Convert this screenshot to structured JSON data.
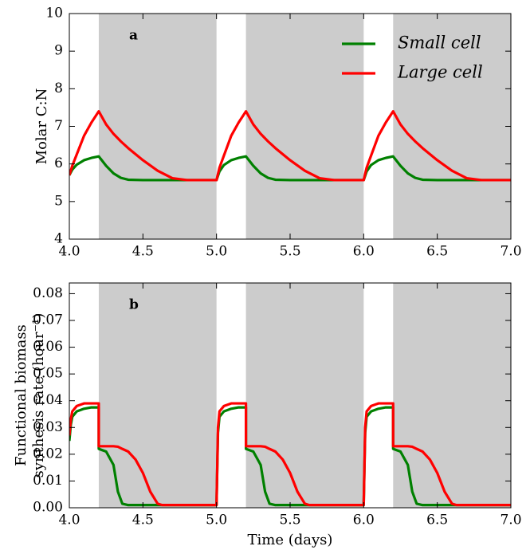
{
  "chart_data": [
    {
      "type": "line",
      "panel_label": "a",
      "ylabel": [
        "Molar C:N"
      ],
      "shaded_intervals": [
        [
          4.2,
          5.0
        ],
        [
          5.2,
          6.0
        ],
        [
          6.2,
          7.0
        ]
      ],
      "shade_color": "#cccccc",
      "xlim": [
        4.0,
        7.0
      ],
      "xticks": [
        {
          "value": 4.0,
          "label": "4.0"
        },
        {
          "value": 4.5,
          "label": "4.5"
        },
        {
          "value": 5.0,
          "label": "5.0"
        },
        {
          "value": 5.5,
          "label": "5.5"
        },
        {
          "value": 6.0,
          "label": "6.0"
        },
        {
          "value": 6.5,
          "label": "6.5"
        },
        {
          "value": 7.0,
          "label": "7.0"
        }
      ],
      "ylim": [
        4,
        10
      ],
      "yticks": [
        4,
        5,
        6,
        7,
        8,
        9,
        10
      ],
      "legend": "upper right",
      "x": [
        4.0,
        4.02,
        4.05,
        4.1,
        4.15,
        4.2,
        4.25,
        4.3,
        4.35,
        4.4,
        4.5,
        4.6,
        4.7,
        4.8,
        4.9,
        5.0,
        5.02,
        5.05,
        5.1,
        5.15,
        5.2,
        5.25,
        5.3,
        5.35,
        5.4,
        5.5,
        5.6,
        5.7,
        5.8,
        5.9,
        6.0,
        6.02,
        6.05,
        6.1,
        6.15,
        6.2,
        6.25,
        6.3,
        6.35,
        6.4,
        6.5,
        6.6,
        6.7,
        6.8,
        6.9,
        7.0
      ],
      "series": [
        {
          "name": "Small cell",
          "color": "#008000",
          "values": [
            5.7,
            5.85,
            5.98,
            6.1,
            6.16,
            6.2,
            5.95,
            5.75,
            5.63,
            5.58,
            5.57,
            5.57,
            5.57,
            5.57,
            5.57,
            5.57,
            5.8,
            5.97,
            6.1,
            6.16,
            6.2,
            5.95,
            5.75,
            5.63,
            5.58,
            5.57,
            5.57,
            5.57,
            5.57,
            5.57,
            5.57,
            5.8,
            5.97,
            6.1,
            6.16,
            6.2,
            5.95,
            5.75,
            5.63,
            5.58,
            5.57,
            5.57,
            5.57,
            5.57,
            5.57,
            5.57
          ]
        },
        {
          "name": "Large cell",
          "color": "#ff0000",
          "values": [
            5.7,
            5.95,
            6.25,
            6.75,
            7.1,
            7.4,
            7.05,
            6.8,
            6.6,
            6.42,
            6.1,
            5.82,
            5.62,
            5.57,
            5.57,
            5.57,
            5.9,
            6.22,
            6.75,
            7.1,
            7.4,
            7.05,
            6.8,
            6.6,
            6.42,
            6.1,
            5.82,
            5.62,
            5.57,
            5.57,
            5.57,
            5.9,
            6.22,
            6.75,
            7.1,
            7.4,
            7.05,
            6.8,
            6.6,
            6.42,
            6.1,
            5.82,
            5.62,
            5.57,
            5.57,
            5.57
          ]
        }
      ]
    },
    {
      "type": "line",
      "panel_label": "b",
      "ylabel": [
        "Functional biomass",
        "synthesis rate (hour⁻¹)"
      ],
      "xlabel": "Time (days)",
      "shaded_intervals": [
        [
          4.2,
          5.0
        ],
        [
          5.2,
          6.0
        ],
        [
          6.2,
          7.0
        ]
      ],
      "shade_color": "#cccccc",
      "xlim": [
        4.0,
        7.0
      ],
      "xticks": [
        {
          "value": 4.0,
          "label": "4.0"
        },
        {
          "value": 4.5,
          "label": "4.5"
        },
        {
          "value": 5.0,
          "label": "5.0"
        },
        {
          "value": 5.5,
          "label": "5.5"
        },
        {
          "value": 6.0,
          "label": "6.0"
        },
        {
          "value": 6.5,
          "label": "6.5"
        },
        {
          "value": 7.0,
          "label": "7.0"
        }
      ],
      "ylim": [
        0,
        0.084
      ],
      "yticks": [
        {
          "value": 0,
          "label": "0.00"
        },
        {
          "value": 0.01,
          "label": "0.01"
        },
        {
          "value": 0.02,
          "label": "0.02"
        },
        {
          "value": 0.03,
          "label": "0.03"
        },
        {
          "value": 0.04,
          "label": "0.04"
        },
        {
          "value": 0.05,
          "label": "0.05"
        },
        {
          "value": 0.06,
          "label": "0.06"
        },
        {
          "value": 0.07,
          "label": "0.07"
        },
        {
          "value": 0.08,
          "label": "0.08"
        }
      ],
      "x": [
        4.0,
        4.01,
        4.02,
        4.05,
        4.1,
        4.15,
        4.2,
        4.2,
        4.25,
        4.3,
        4.33,
        4.36,
        4.4,
        4.45,
        4.5,
        4.55,
        4.6,
        4.63,
        4.7,
        4.8,
        4.9,
        5.0,
        5.01,
        5.02,
        5.05,
        5.1,
        5.15,
        5.2,
        5.2,
        5.25,
        5.3,
        5.33,
        5.36,
        5.4,
        5.45,
        5.5,
        5.55,
        5.6,
        5.63,
        5.7,
        5.8,
        5.9,
        6.0,
        6.01,
        6.02,
        6.05,
        6.1,
        6.15,
        6.2,
        6.2,
        6.25,
        6.3,
        6.33,
        6.36,
        6.4,
        6.45,
        6.5,
        6.55,
        6.6,
        6.63,
        6.7,
        6.8,
        6.9,
        7.0
      ],
      "series": [
        {
          "color": "#008000",
          "values": [
            0.025,
            0.031,
            0.034,
            0.036,
            0.037,
            0.0375,
            0.0375,
            0.022,
            0.021,
            0.016,
            0.006,
            0.0015,
            0.001,
            0.001,
            0.001,
            0.001,
            0.001,
            0.001,
            0.001,
            0.001,
            0.001,
            0.001,
            0.028,
            0.034,
            0.036,
            0.037,
            0.0375,
            0.0375,
            0.022,
            0.021,
            0.016,
            0.006,
            0.0015,
            0.001,
            0.001,
            0.001,
            0.001,
            0.001,
            0.001,
            0.001,
            0.001,
            0.001,
            0.001,
            0.028,
            0.034,
            0.036,
            0.037,
            0.0375,
            0.0375,
            0.022,
            0.021,
            0.016,
            0.006,
            0.0015,
            0.001,
            0.001,
            0.001,
            0.001,
            0.001,
            0.001,
            0.001,
            0.001,
            0.001,
            0.001
          ]
        },
        {
          "color": "#ff0000",
          "values": [
            0.027,
            0.033,
            0.036,
            0.038,
            0.039,
            0.039,
            0.039,
            0.023,
            0.023,
            0.023,
            0.0228,
            0.022,
            0.021,
            0.018,
            0.013,
            0.006,
            0.0015,
            0.001,
            0.001,
            0.001,
            0.001,
            0.001,
            0.03,
            0.036,
            0.038,
            0.039,
            0.039,
            0.039,
            0.023,
            0.023,
            0.023,
            0.0228,
            0.022,
            0.021,
            0.018,
            0.013,
            0.006,
            0.0015,
            0.001,
            0.001,
            0.001,
            0.001,
            0.001,
            0.03,
            0.036,
            0.038,
            0.039,
            0.039,
            0.039,
            0.023,
            0.023,
            0.023,
            0.0228,
            0.022,
            0.021,
            0.018,
            0.013,
            0.006,
            0.0015,
            0.001,
            0.001,
            0.001,
            0.001,
            0.001
          ]
        }
      ]
    }
  ]
}
